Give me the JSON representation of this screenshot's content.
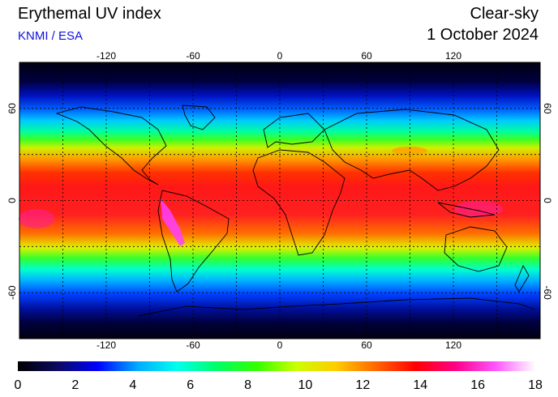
{
  "header": {
    "title": "Erythemal UV index",
    "credit": "KNMI / ESA",
    "mode": "Clear-sky",
    "date": "1 October 2024"
  },
  "map": {
    "lon_ticks": [
      -120,
      -60,
      0,
      60,
      120
    ],
    "lat_ticks": [
      60,
      0,
      -60
    ],
    "lon_range": [
      -180,
      180
    ],
    "lat_range": [
      -90,
      90
    ],
    "grid_lon": [
      -150,
      -120,
      -90,
      -60,
      -30,
      0,
      30,
      60,
      90,
      120,
      150
    ],
    "grid_lat": [
      -60,
      -30,
      0,
      30,
      60
    ]
  },
  "colorbar": {
    "min": 0,
    "max": 18,
    "ticks": [
      0,
      2,
      4,
      6,
      8,
      10,
      12,
      14,
      16,
      18
    ],
    "colors": [
      "#000000",
      "#0a0a60",
      "#0000ff",
      "#00aaff",
      "#00ffee",
      "#00ff66",
      "#33ff00",
      "#ccff00",
      "#ffcc00",
      "#ff6600",
      "#ff0000",
      "#ff0088",
      "#ff55ff",
      "#ffffff"
    ]
  }
}
